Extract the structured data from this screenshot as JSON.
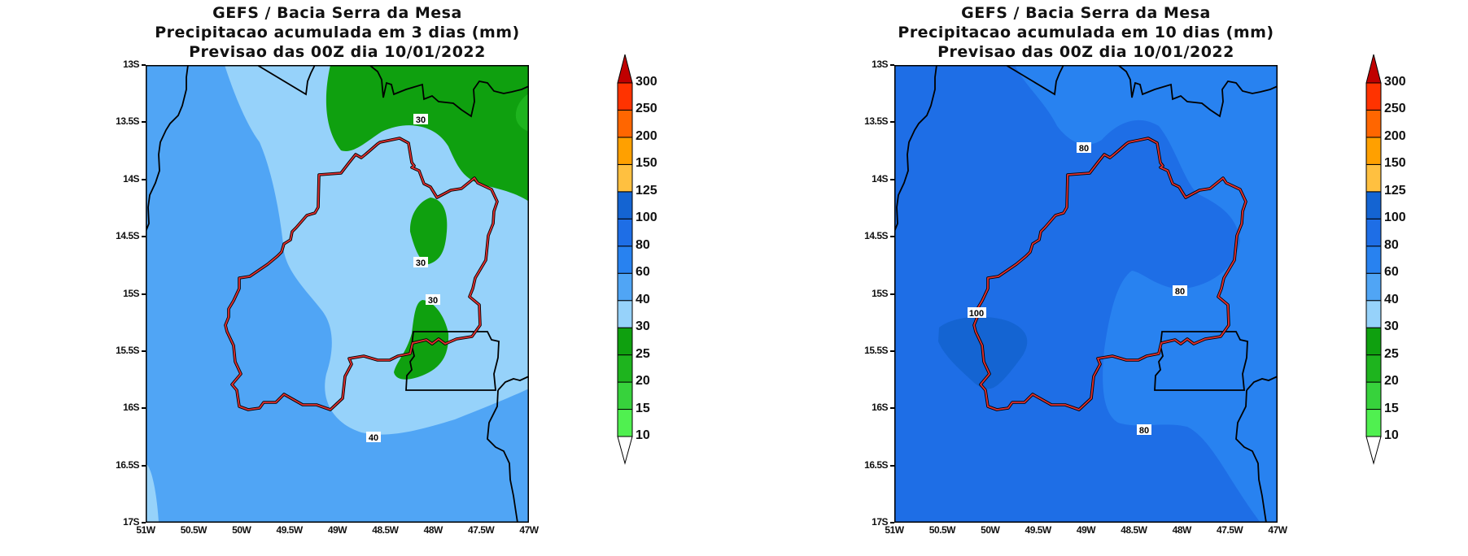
{
  "panels": [
    {
      "title_lines": [
        "GEFS / Bacia Serra da Mesa",
        "Precipitacao acumulada em 3 dias (mm)",
        "Previsao das 00Z dia 10/01/2022"
      ],
      "contour_labels": [
        "30",
        "30",
        "30",
        "40"
      ],
      "field_colors": {
        "base": "#50a5f5",
        "light": "#96d2fa",
        "green": "#0fa00f",
        "green2": "#1eb41e"
      }
    },
    {
      "title_lines": [
        "GEFS / Bacia Serra da Mesa",
        "Precipitacao acumulada em 10 dias (mm)",
        "Previsao das 00Z dia 10/01/2022"
      ],
      "contour_labels": [
        "80",
        "80",
        "80",
        "100"
      ],
      "field_colors": {
        "base": "#1e6ee6",
        "light": "#2882f0",
        "dark": "#1464d2"
      }
    }
  ],
  "axes": {
    "lat_ticks": [
      "13S",
      "13.5S",
      "14S",
      "14.5S",
      "15S",
      "15.5S",
      "16S",
      "16.5S",
      "17S"
    ],
    "lon_ticks": [
      "51W",
      "50.5W",
      "50W",
      "49.5W",
      "49W",
      "48.5W",
      "48W",
      "47.5W",
      "47W"
    ]
  },
  "colorbar": {
    "levels": [
      "10",
      "15",
      "20",
      "25",
      "30",
      "40",
      "60",
      "80",
      "100",
      "125",
      "150",
      "200",
      "250",
      "300"
    ],
    "colors": [
      "#50f050",
      "#37d23c",
      "#1eb41e",
      "#0fa00f",
      "#96d2fa",
      "#50a5f5",
      "#2882f0",
      "#1e6ee6",
      "#1464d2",
      "#ffc040",
      "#ffa000",
      "#ff6600",
      "#ff3300"
    ],
    "over_color": "#c00000",
    "under_color": "#ffffff"
  },
  "overlay_colors": {
    "basin_outline": "#e03030",
    "borders": "#000000"
  }
}
